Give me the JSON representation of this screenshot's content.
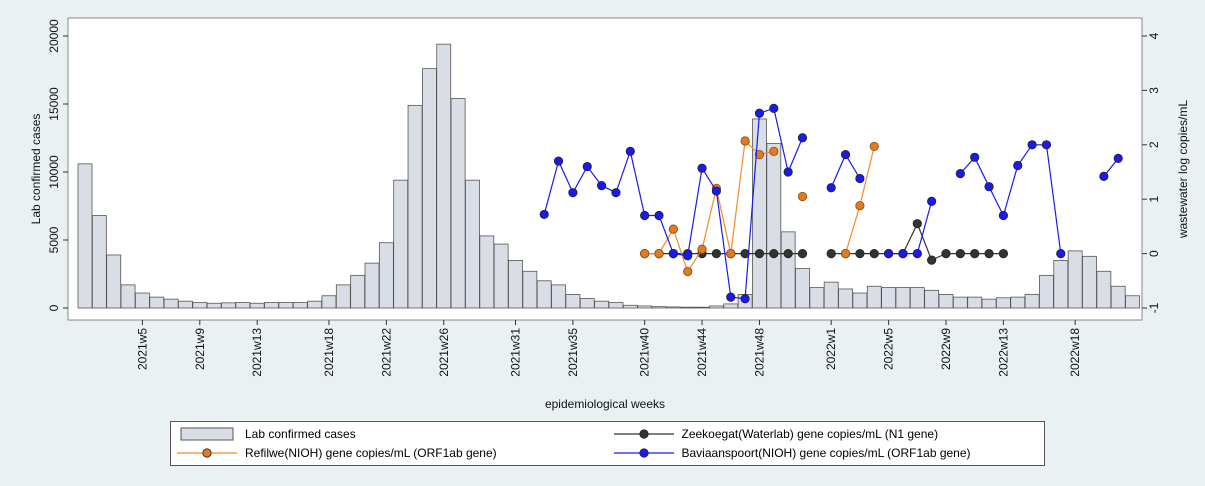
{
  "chart_data": {
    "type": "bar",
    "x_label": "epidemiological weeks",
    "y_label": "Lab  confirmed cases",
    "y2_label": "wastewater log copies/mL",
    "categories": [
      null,
      null,
      null,
      null,
      "2021w5",
      null,
      null,
      null,
      "2021w9",
      null,
      null,
      null,
      "2021w13",
      null,
      null,
      null,
      null,
      "2021w18",
      null,
      null,
      null,
      "2021w22",
      null,
      null,
      null,
      "2021w26",
      null,
      null,
      null,
      null,
      "2021w31",
      null,
      null,
      null,
      "2021w35",
      null,
      null,
      null,
      null,
      "2021w40",
      null,
      null,
      null,
      "2021w44",
      null,
      null,
      null,
      "2021w48",
      null,
      null,
      null,
      null,
      "2022w1",
      null,
      null,
      null,
      "2022w5",
      null,
      null,
      null,
      "2022w9",
      null,
      null,
      null,
      "2022w13",
      null,
      null,
      null,
      null,
      "2022w18",
      null,
      null,
      null,
      null
    ],
    "ylim": [
      0,
      20000
    ],
    "yticks": [
      0,
      5000,
      10000,
      15000,
      20000
    ],
    "y2lim": [
      -1,
      4
    ],
    "y2ticks": [
      -1,
      0,
      1,
      2,
      3,
      4
    ],
    "series": [
      {
        "name": "Lab  confirmed cases",
        "type": "bar",
        "color": "#d9dee6",
        "values": [
          10600,
          6800,
          3900,
          1700,
          1100,
          800,
          650,
          500,
          400,
          350,
          380,
          400,
          350,
          400,
          400,
          400,
          500,
          900,
          1700,
          2400,
          3300,
          4800,
          9400,
          14900,
          17600,
          19400,
          15400,
          9400,
          5300,
          4700,
          3500,
          2700,
          2000,
          1700,
          1000,
          700,
          500,
          400,
          200,
          150,
          100,
          80,
          60,
          60,
          150,
          300,
          1000,
          13900,
          12100,
          5600,
          2900,
          1500,
          1900,
          1400,
          1100,
          1600,
          1500,
          1500,
          1500,
          1300,
          1000,
          800,
          800,
          650,
          750,
          800,
          1000,
          2400,
          3500,
          4200,
          3800,
          2700,
          1600,
          900
        ]
      },
      {
        "name": "Zeekoegat(Waterlab) gene copies/mL (N1 gene)",
        "type": "line",
        "axis": "y2",
        "color": "#333333",
        "values": [
          null,
          null,
          null,
          null,
          null,
          null,
          null,
          null,
          null,
          null,
          null,
          null,
          null,
          null,
          null,
          null,
          null,
          null,
          null,
          null,
          null,
          null,
          null,
          null,
          null,
          null,
          null,
          null,
          null,
          null,
          null,
          null,
          null,
          null,
          null,
          null,
          null,
          null,
          null,
          0,
          0,
          0,
          0,
          0,
          0,
          0,
          0,
          0,
          0,
          0,
          0,
          null,
          0,
          0,
          0,
          0,
          0,
          0,
          0.55,
          -0.12,
          0,
          0,
          0,
          0,
          0,
          null,
          null,
          null,
          null,
          null,
          null,
          null,
          null,
          null
        ]
      },
      {
        "name": "Refilwe(NIOH) gene copies/mL (ORF1ab gene)",
        "type": "line",
        "axis": "y2",
        "color": "#f28c28",
        "values": [
          null,
          null,
          null,
          null,
          null,
          null,
          null,
          null,
          null,
          null,
          null,
          null,
          null,
          null,
          null,
          null,
          null,
          null,
          null,
          null,
          null,
          null,
          null,
          null,
          null,
          null,
          null,
          null,
          null,
          null,
          null,
          null,
          null,
          null,
          null,
          null,
          null,
          null,
          null,
          0,
          0,
          0.45,
          -0.33,
          0.08,
          1.2,
          0,
          2.07,
          1.82,
          1.88,
          null,
          1.05,
          null,
          null,
          0,
          0.88,
          1.97,
          null,
          null,
          null,
          null,
          null,
          null,
          null,
          null,
          null,
          null,
          null,
          null,
          null,
          null,
          null,
          null,
          null,
          null
        ]
      },
      {
        "name": "Baviaanspoort(NIOH) gene copies/mL (ORF1ab gene)",
        "type": "line",
        "axis": "y2",
        "color": "#1a1aee",
        "values": [
          null,
          null,
          null,
          null,
          null,
          null,
          null,
          null,
          null,
          null,
          null,
          null,
          null,
          null,
          null,
          null,
          null,
          null,
          null,
          null,
          null,
          null,
          null,
          null,
          null,
          null,
          null,
          null,
          null,
          null,
          null,
          null,
          0.72,
          1.7,
          1.12,
          1.6,
          1.25,
          1.12,
          1.88,
          0.7,
          0.7,
          0,
          -0.04,
          1.57,
          1.15,
          -0.8,
          -0.83,
          2.58,
          2.67,
          1.5,
          2.13,
          null,
          1.21,
          1.82,
          1.38,
          null,
          0,
          0,
          0,
          0.96,
          null,
          1.47,
          1.77,
          1.23,
          0.7,
          1.62,
          2.0,
          2.0,
          0,
          null,
          null,
          1.42,
          1.75,
          null
        ]
      }
    ]
  }
}
